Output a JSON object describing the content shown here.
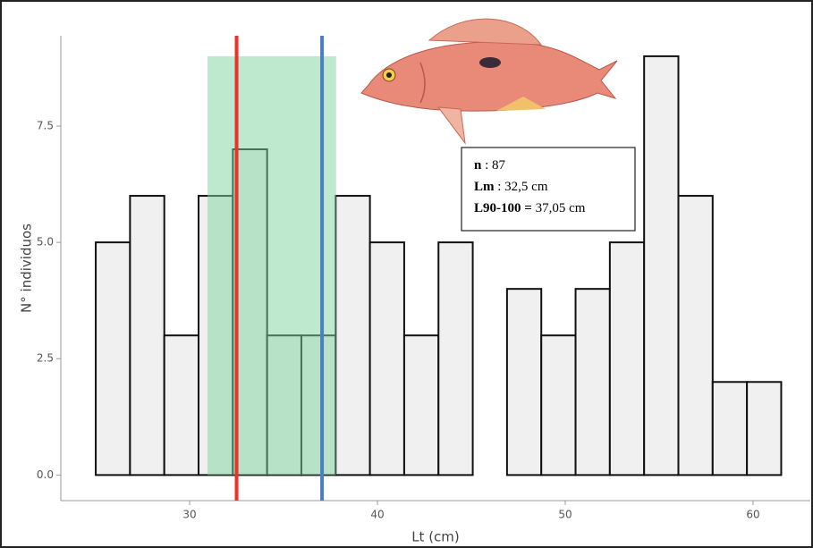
{
  "chart_data": {
    "type": "histogram",
    "bins": [
      25,
      26.825,
      28.65,
      30.475,
      32.3,
      34.125,
      35.95,
      37.775,
      39.6,
      41.425,
      43.25,
      45.075,
      46.9,
      48.725,
      50.55,
      52.375,
      54.2,
      56.025,
      57.85,
      59.675,
      61.5
    ],
    "values": [
      5,
      6,
      3,
      6,
      7,
      3,
      3,
      6,
      5,
      3,
      5,
      0,
      4,
      3,
      4,
      5,
      9,
      6,
      2,
      2
    ],
    "color": "#f0f0f0",
    "xlabel": "Lt (cm)",
    "ylabel": "N° individuos",
    "xlim": [
      23.14,
      63.05
    ],
    "ylim": [
      -0.55,
      9.44
    ],
    "xticks": [
      30,
      40,
      50,
      60
    ],
    "yticks": [
      {
        "value": 0,
        "label": "0.0"
      },
      {
        "value": 2.5,
        "label": "2.5"
      },
      {
        "value": 5,
        "label": "5.0"
      },
      {
        "value": 7.5,
        "label": "7.5"
      }
    ],
    "lines": [
      {
        "x": 32.5,
        "color": "#e8332a"
      },
      {
        "x": 37.05,
        "color": "#4a7fc0"
      }
    ],
    "shaded_range": {
      "x": [
        30.95,
        37.8
      ],
      "ymax": 9,
      "color": "#7fd3a0"
    },
    "annotation": {
      "n_label": "n",
      "n_value": ": 87",
      "lm_label": "Lm",
      "lm_value": ": 32,5 cm",
      "l90_label": "L90-100 =",
      "l90_value": "37,05 cm"
    }
  }
}
